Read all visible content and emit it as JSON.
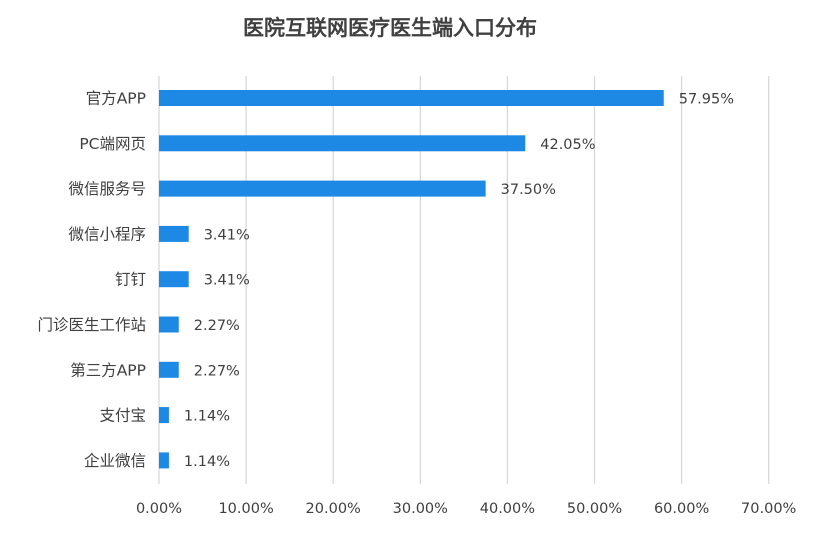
{
  "chart_data": {
    "type": "bar",
    "orientation": "horizontal",
    "title": "医院互联网医疗医生端入口分布",
    "categories": [
      "官方APP",
      "PC端网页",
      "微信服务号",
      "微信小程序",
      "钉钉",
      "门诊医生工作站",
      "第三方APP",
      "支付宝",
      "企业微信"
    ],
    "values": [
      57.95,
      42.05,
      37.5,
      3.41,
      3.41,
      2.27,
      2.27,
      1.14,
      1.14
    ],
    "value_labels": [
      "57.95%",
      "42.05%",
      "37.50%",
      "3.41%",
      "3.41%",
      "2.27%",
      "2.27%",
      "1.14%",
      "1.14%"
    ],
    "xlim": [
      0,
      70
    ],
    "xticks": [
      "0.00%",
      "10.00%",
      "20.00%",
      "30.00%",
      "40.00%",
      "50.00%",
      "60.00%",
      "70.00%"
    ],
    "grid": true,
    "legend": "none",
    "bar_color": "#1e88e5",
    "grid_color": "#d9d9d9",
    "text_color": "#404040"
  }
}
